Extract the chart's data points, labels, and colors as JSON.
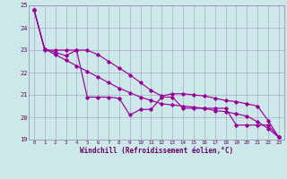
{
  "xlabel": "Windchill (Refroidissement éolien,°C)",
  "x": [
    0,
    1,
    2,
    3,
    4,
    5,
    6,
    7,
    8,
    9,
    10,
    11,
    12,
    13,
    14,
    15,
    16,
    17,
    18,
    19,
    20,
    21,
    22,
    23
  ],
  "line_jagged": [
    24.8,
    23.0,
    23.0,
    23.0,
    23.0,
    20.9,
    20.9,
    20.9,
    20.85,
    20.1,
    20.35,
    20.35,
    20.9,
    20.9,
    20.4,
    20.4,
    20.4,
    20.4,
    20.4,
    19.65,
    19.65,
    19.65,
    19.65,
    19.1
  ],
  "line_smooth1": [
    24.8,
    23.05,
    22.8,
    22.55,
    22.3,
    22.05,
    21.8,
    21.55,
    21.3,
    21.1,
    20.9,
    20.75,
    20.6,
    20.55,
    20.5,
    20.45,
    20.4,
    20.3,
    20.25,
    20.15,
    20.05,
    19.8,
    19.5,
    19.1
  ],
  "line_smooth2": [
    24.8,
    23.05,
    22.9,
    22.75,
    23.0,
    23.0,
    22.8,
    22.5,
    22.2,
    21.9,
    21.55,
    21.2,
    20.95,
    21.05,
    21.05,
    21.0,
    20.95,
    20.85,
    20.75,
    20.7,
    20.6,
    20.5,
    19.85,
    19.1
  ],
  "bg_color": "#cce8e8",
  "line_color": "#990099",
  "grid_color": "#aaaacc",
  "ylim": [
    19,
    25
  ],
  "yticks": [
    19,
    20,
    21,
    22,
    23,
    24,
    25
  ],
  "xlim": [
    -0.5,
    23.5
  ],
  "xticks": [
    0,
    1,
    2,
    3,
    4,
    5,
    6,
    7,
    8,
    9,
    10,
    11,
    12,
    13,
    14,
    15,
    16,
    17,
    18,
    19,
    20,
    21,
    22,
    23
  ]
}
